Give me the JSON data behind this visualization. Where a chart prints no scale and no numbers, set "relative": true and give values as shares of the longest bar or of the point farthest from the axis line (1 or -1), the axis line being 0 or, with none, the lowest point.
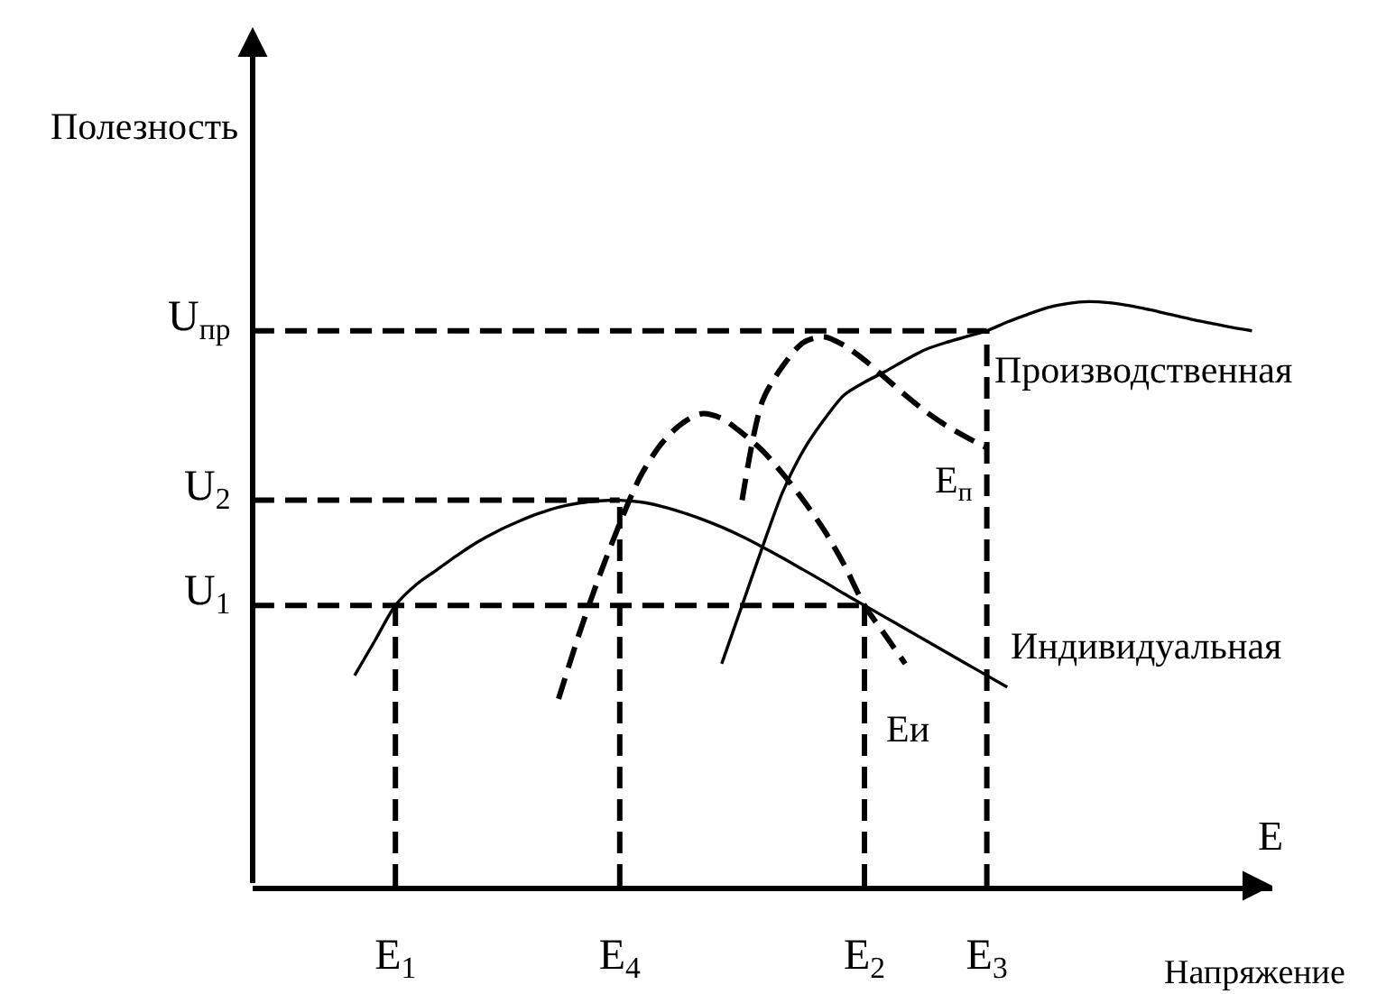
{
  "chart_data": {
    "type": "line",
    "relative": true,
    "ylabel": "Полезность",
    "xlabel": "Напряжение",
    "tick_labels": "x",
    "categories": [
      null,
      null,
      null,
      null,
      null,
      null,
      null,
      "E$_{1}$",
      null,
      null,
      null,
      null,
      null,
      null,
      null,
      null,
      null,
      null,
      "E$_{4}$",
      null,
      null,
      null,
      null,
      null,
      null,
      null,
      null,
      null,
      null,
      null,
      "E$_{2}$",
      null,
      null,
      null,
      null,
      null,
      "E$_{3}$",
      null,
      null,
      null,
      null,
      null,
      null,
      null,
      null,
      null,
      null,
      null,
      null,
      null,
      null
    ],
    "annotations": [
      "E"
    ],
    "series": [
      {
        "name": "Производственная",
        "color": "#000000",
        "line_style": "solid",
        "values": [
          null,
          null,
          null,
          null,
          null,
          null,
          null,
          null,
          null,
          null,
          null,
          null,
          null,
          null,
          null,
          null,
          null,
          null,
          null,
          null,
          null,
          null,
          null,
          0.38,
          0.48,
          0.58,
          0.675,
          0.745,
          0.797,
          0.84,
          0.862,
          0.88,
          0.9,
          0.918,
          0.93,
          0.94,
          0.95,
          0.965,
          0.978,
          0.99,
          0.997,
          1,
          0.998,
          0.993,
          0.986,
          0.978,
          0.97,
          0.963,
          0.956,
          0.95,
          null
        ]
      },
      {
        "name": "Индивидуальная",
        "color": "#000000",
        "line_style": "solid",
        "values": [
          null,
          null,
          null,
          null,
          null,
          0.36,
          0.42,
          0.48,
          0.515,
          0.54,
          0.565,
          0.588,
          0.607,
          0.623,
          0.637,
          0.648,
          0.655,
          0.659,
          0.66,
          0.657,
          0.65,
          0.64,
          0.628,
          0.614,
          0.598,
          0.58,
          0.561,
          0.541,
          0.521,
          0.5,
          0.48,
          0.46,
          0.44,
          0.42,
          0.4,
          0.38,
          0.36,
          0.34,
          null,
          null,
          null,
          null,
          null,
          null,
          null,
          null,
          null,
          null,
          null,
          null,
          null
        ]
      },
      {
        "name": "E$_{п}$",
        "color": "#000000",
        "line_style": "dashed",
        "values": [
          null,
          null,
          null,
          null,
          null,
          null,
          null,
          null,
          null,
          null,
          null,
          null,
          null,
          null,
          null,
          null,
          null,
          null,
          null,
          null,
          null,
          null,
          null,
          null,
          0.66,
          0.83,
          0.89,
          0.93,
          0.94,
          0.925,
          0.9,
          0.87,
          0.84,
          0.812,
          0.788,
          0.768,
          0.75,
          null,
          null,
          null,
          null,
          null,
          null,
          null,
          null,
          null,
          null,
          null,
          null,
          null,
          null
        ]
      },
      {
        "name": "Eи",
        "color": "#000000",
        "line_style": "dashed",
        "values": [
          null,
          null,
          null,
          null,
          null,
          null,
          null,
          null,
          null,
          null,
          null,
          null,
          null,
          null,
          null,
          0.32,
          0.43,
          0.53,
          0.62,
          0.7,
          0.755,
          0.79,
          0.808,
          0.8,
          0.775,
          0.745,
          0.705,
          0.66,
          0.61,
          0.55,
          0.48,
          0.43,
          0.38,
          null,
          null,
          null,
          null,
          null,
          null,
          null,
          null,
          null,
          null,
          null,
          null,
          null,
          null,
          null,
          null,
          null,
          null
        ]
      },
      {
        "name": "U$_{1}$",
        "color": "#000000",
        "line_style": "dashed",
        "values": [
          0.48,
          0.48,
          0.48,
          0.48,
          0.48,
          0.48,
          0.48,
          0.48,
          0.48,
          0.48,
          0.48,
          0.48,
          0.48,
          0.48,
          0.48,
          0.48,
          0.48,
          0.48,
          0.48,
          0.48,
          0.48,
          0.48,
          0.48,
          0.48,
          0.48,
          0.48,
          0.48,
          0.48,
          0.48,
          0.48,
          0.48,
          null,
          null,
          null,
          null,
          null,
          null,
          null,
          null,
          null,
          null,
          null,
          null,
          null,
          null,
          null,
          null,
          null,
          null,
          null,
          null
        ]
      },
      {
        "name": "U$_{2}$",
        "color": "#000000",
        "line_style": "dashed",
        "values": [
          0.66,
          0.66,
          0.66,
          0.66,
          0.66,
          0.66,
          0.66,
          0.66,
          0.66,
          0.66,
          0.66,
          0.66,
          0.66,
          0.66,
          0.66,
          0.66,
          0.66,
          0.66,
          0.66,
          null,
          null,
          null,
          null,
          null,
          null,
          null,
          null,
          null,
          null,
          null,
          null,
          null,
          null,
          null,
          null,
          null,
          null,
          null,
          null,
          null,
          null,
          null,
          null,
          null,
          null,
          null,
          null,
          null,
          null,
          null,
          null
        ]
      },
      {
        "name": "U$_{пр}$",
        "color": "#000000",
        "line_style": "dashed",
        "values": [
          0.95,
          0.95,
          0.95,
          0.95,
          0.95,
          0.95,
          0.95,
          0.95,
          0.95,
          0.95,
          0.95,
          0.95,
          0.95,
          0.95,
          0.95,
          0.95,
          0.95,
          0.95,
          0.95,
          0.95,
          0.95,
          0.95,
          0.95,
          0.95,
          0.95,
          0.95,
          0.95,
          0.95,
          0.95,
          0.95,
          0.95,
          0.95,
          0.95,
          0.95,
          0.95,
          0.95,
          0.95,
          null,
          null,
          null,
          null,
          null,
          null,
          null,
          null,
          null,
          null,
          null,
          null,
          null,
          null
        ]
      },
      {
        "color": "#000000",
        "line_style": "dashed",
        "x": [
          "E$_{1}$",
          "E$_{1}$"
        ],
        "values": [
          0,
          0.48
        ]
      },
      {
        "color": "#000000",
        "line_style": "dashed",
        "x": [
          "E$_{4}$",
          "E$_{4}$"
        ],
        "values": [
          0,
          0.66
        ]
      },
      {
        "color": "#000000",
        "line_style": "dashed",
        "x": [
          "E$_{2}$",
          "E$_{2}$"
        ],
        "values": [
          0,
          0.48
        ]
      },
      {
        "color": "#000000",
        "line_style": "dashed",
        "x": [
          "E$_{3}$",
          "E$_{3}$"
        ],
        "values": [
          0,
          0.95
        ]
      }
    ]
  }
}
